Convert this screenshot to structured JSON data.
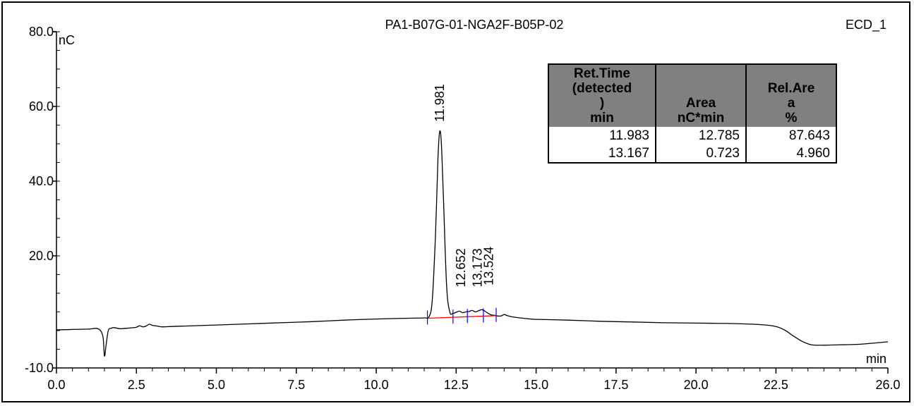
{
  "chart_data": {
    "type": "line",
    "title": "PA1-B07G-01-NGA2F-B05P-02",
    "channel": "ECD_1",
    "xlabel": "min",
    "ylabel": "nC",
    "xlim": [
      0,
      26
    ],
    "ylim": [
      -10,
      80
    ],
    "x_ticks": [
      "0.0",
      "2.5",
      "5.0",
      "7.5",
      "10.0",
      "12.5",
      "15.0",
      "17.5",
      "20.0",
      "22.5",
      "26.0"
    ],
    "x_tick_values": [
      0,
      2.5,
      5,
      7.5,
      10,
      12.5,
      15,
      17.5,
      20,
      22.5,
      26
    ],
    "y_ticks": [
      "80.0",
      "60.0",
      "40.0",
      "20.0",
      "-10.0"
    ],
    "y_tick_values": [
      80,
      60,
      40,
      20,
      -10
    ],
    "trace_color": "#000000",
    "baseline_color": "#ff0000",
    "marker_color": "#0000ff",
    "series": [
      {
        "x": [
          0,
          0.5,
          1.0,
          1.3,
          1.45,
          1.5,
          1.55,
          1.62,
          1.7,
          1.8,
          2.0,
          2.3,
          2.5,
          2.6,
          2.7,
          2.8,
          2.9,
          3.0,
          3.15,
          3.3,
          3.6,
          4.0,
          5.0,
          6.0,
          7.0,
          8.0,
          9.0,
          10.0,
          11.0,
          11.5,
          11.65,
          11.75,
          11.85,
          11.93,
          11.98,
          12.03,
          12.1,
          12.2,
          12.3,
          12.4,
          12.5,
          12.6,
          12.7,
          12.8,
          12.9,
          13.0,
          13.1,
          13.2,
          13.3,
          13.4,
          13.5,
          13.6,
          13.7,
          13.8,
          13.9,
          14.0,
          14.1,
          14.3,
          14.6,
          15.0,
          16.0,
          17.0,
          18.0,
          19.0,
          20.0,
          21.0,
          22.0,
          22.5,
          22.8,
          23.0,
          23.3,
          23.6,
          24.0,
          24.5,
          25.0,
          25.5,
          26.0
        ],
        "y": [
          0.2,
          0.3,
          0.4,
          0.5,
          -1.5,
          -6.8,
          -4.0,
          0.0,
          0.6,
          0.8,
          0.5,
          0.7,
          0.9,
          1.3,
          1.0,
          1.2,
          1.7,
          1.4,
          1.2,
          1.0,
          1.1,
          1.2,
          1.5,
          1.8,
          2.1,
          2.4,
          2.8,
          3.1,
          3.3,
          3.4,
          3.7,
          8.0,
          25.0,
          46.0,
          53.0,
          51.0,
          36.0,
          12.0,
          5.0,
          4.6,
          4.9,
          5.2,
          4.8,
          5.0,
          5.1,
          5.4,
          5.0,
          5.3,
          5.6,
          5.2,
          4.6,
          4.2,
          4.1,
          3.9,
          3.9,
          4.3,
          4.0,
          3.6,
          3.3,
          3.0,
          2.8,
          2.5,
          2.3,
          2.1,
          2.0,
          1.9,
          1.6,
          1.1,
          0.0,
          -1.2,
          -2.8,
          -3.8,
          -3.9,
          -3.8,
          -3.7,
          -3.4,
          -3.0
        ]
      }
    ],
    "integration_baseline": {
      "x": [
        11.6,
        13.75
      ],
      "y": [
        3.3,
        4.0
      ]
    },
    "integration_markers": [
      11.6,
      12.4,
      12.85,
      13.35,
      13.75
    ],
    "peak_labels": [
      {
        "rt": 11.98,
        "label": "11.981",
        "label_top_y": 66
      },
      {
        "rt": 12.65,
        "label": "12.652",
        "label_top_y": 22
      },
      {
        "rt": 13.17,
        "label": "13.173",
        "label_top_y": 22
      },
      {
        "rt": 13.52,
        "label": "13.524",
        "label_top_y": 22.5
      }
    ],
    "peak_table": {
      "headers": [
        "Ret.Time\n(detected\n)\nmin",
        "Area\nnC*min",
        "Rel.Are\na\n%"
      ],
      "rows": [
        [
          "11.983",
          "12.785",
          "87.643"
        ],
        [
          "13.167",
          "0.723",
          "4.960"
        ]
      ]
    }
  }
}
